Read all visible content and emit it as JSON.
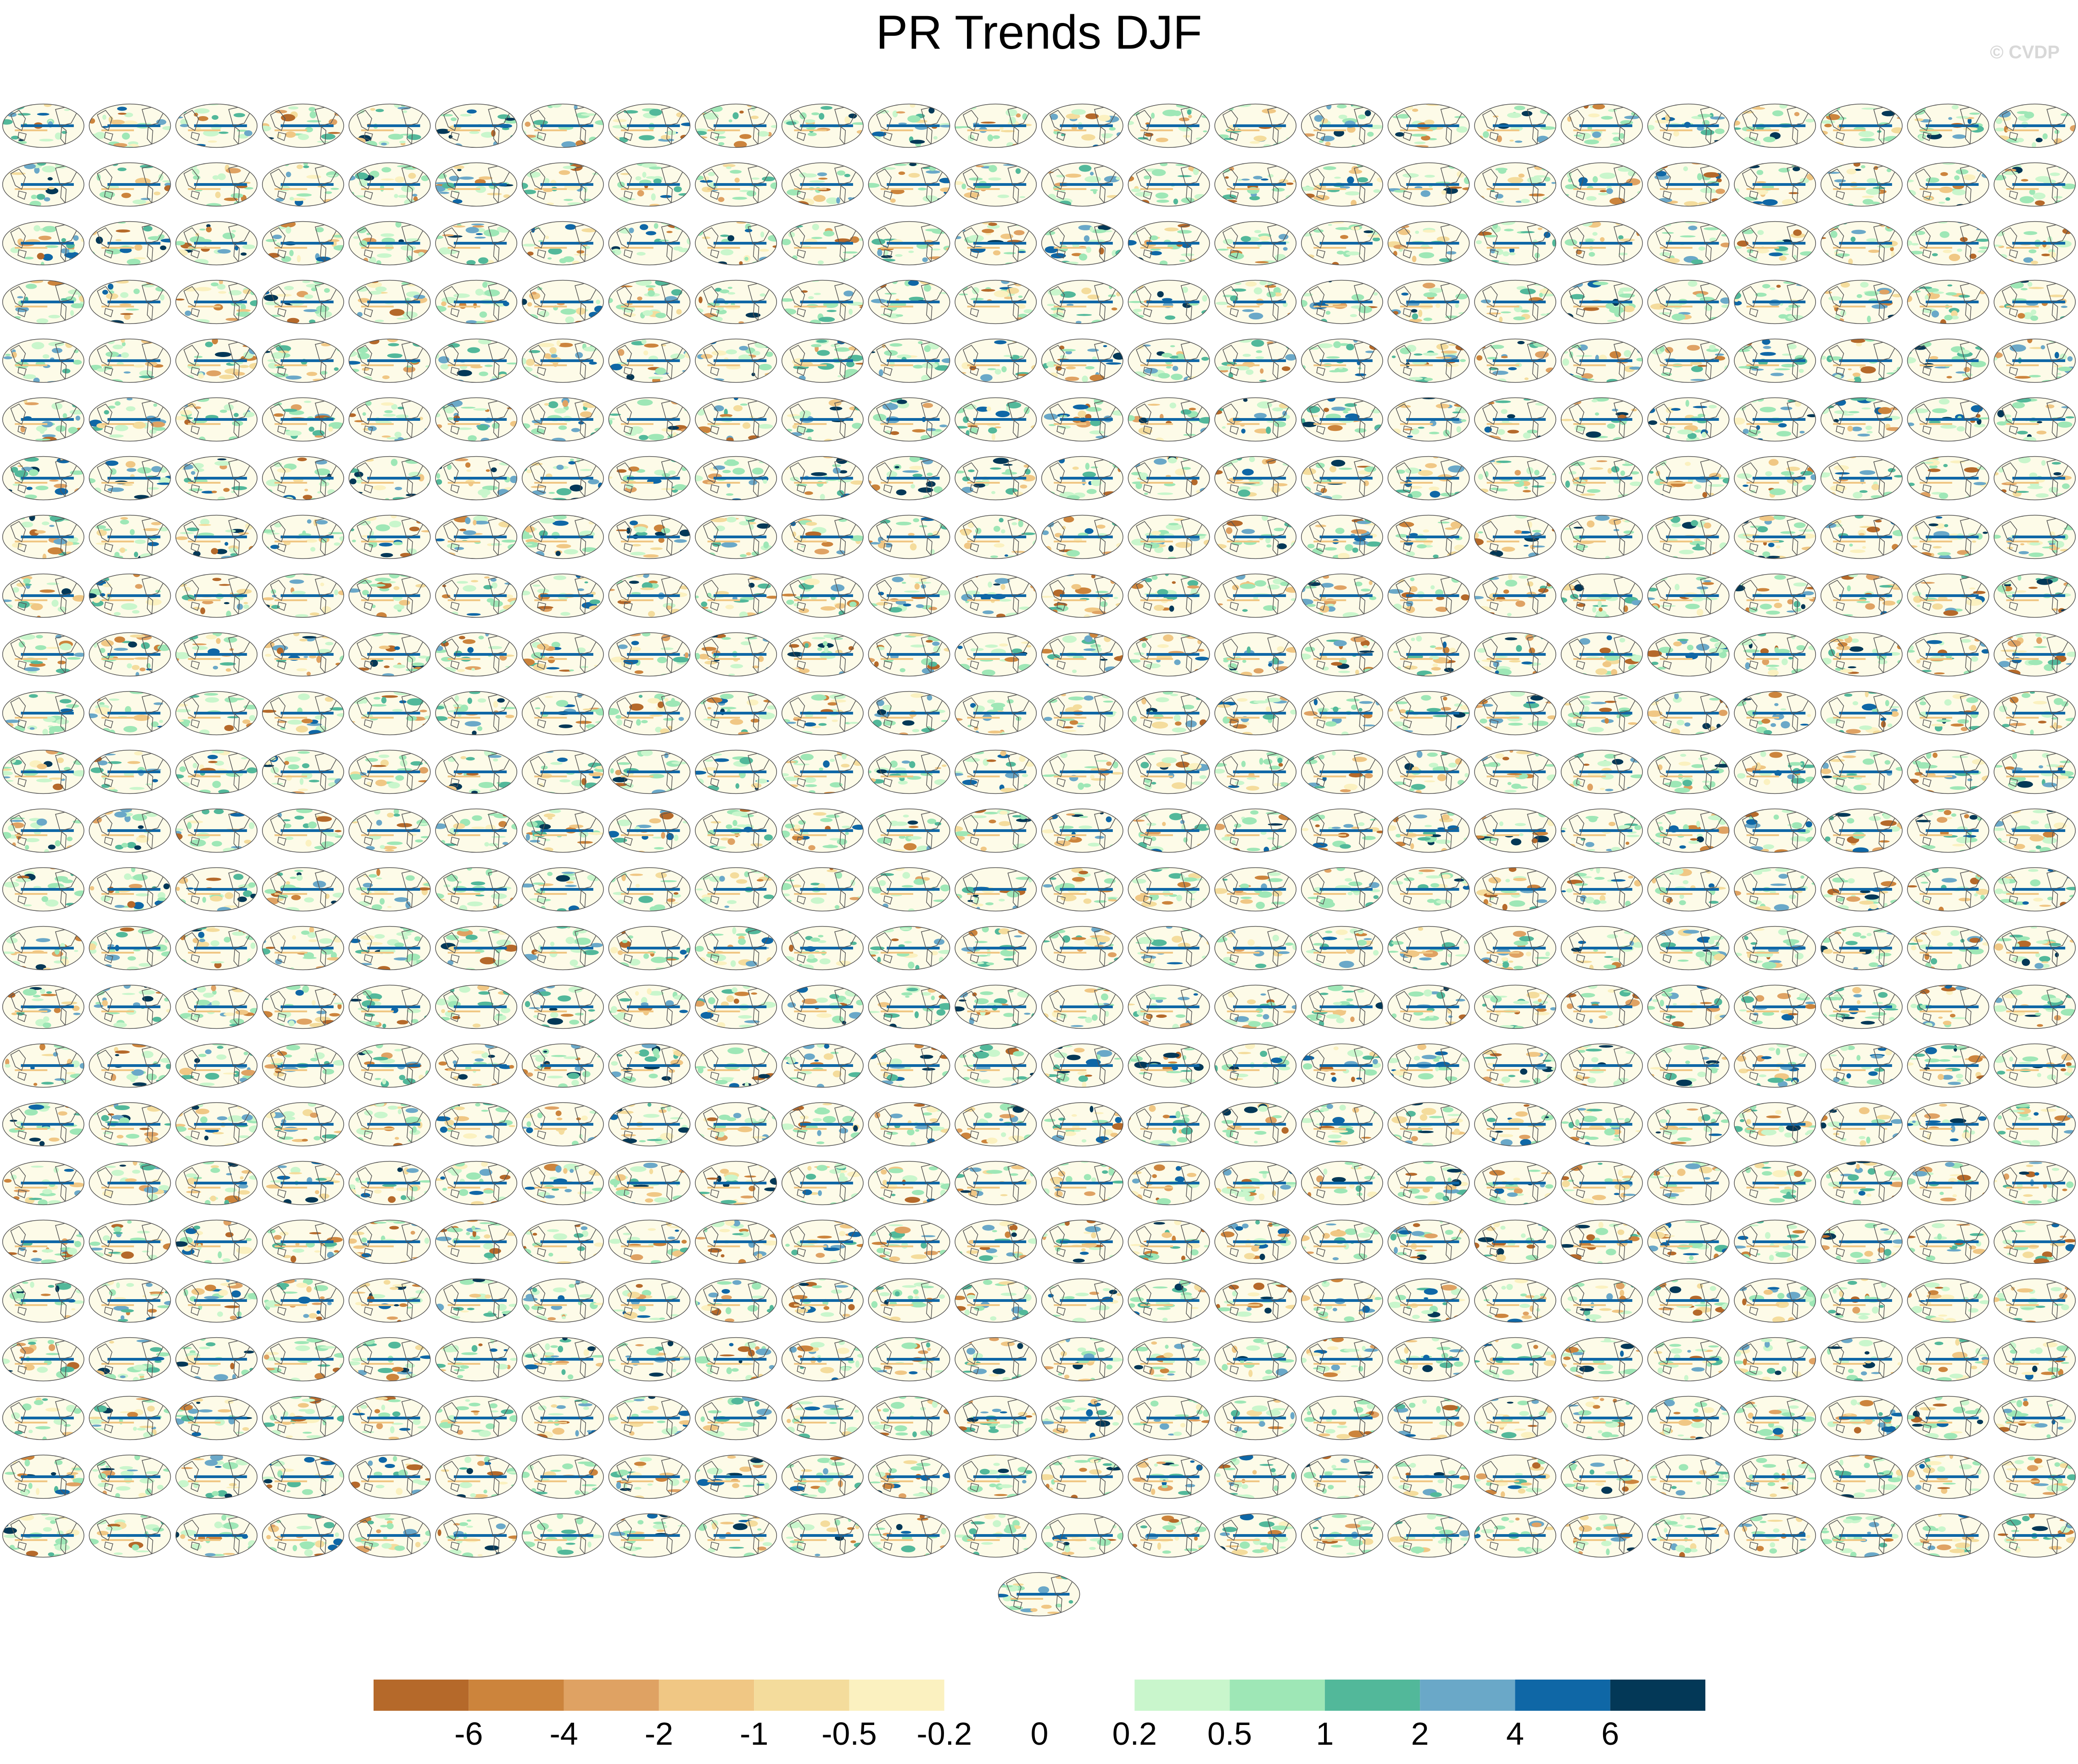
{
  "title": "PR Trends DJF",
  "watermark": "© CVDP",
  "colors": {
    "land_outline": "#555555",
    "background": "#ffffff"
  },
  "chart_data": {
    "type": "heatmap",
    "title": "PR Trends DJF",
    "panel_layout": {
      "rows": 25,
      "columns": 24,
      "extra_centered_panels": 1
    },
    "projection": "global map (elliptical, Pacific-centered)",
    "colorbar": {
      "orientation": "horizontal",
      "placement": "bottom-center",
      "tick_labels": [
        "-6",
        "-4",
        "-2",
        "-1",
        "-0.5",
        "-0.2",
        "0",
        "0.2",
        "0.5",
        "1",
        "2",
        "4",
        "6"
      ],
      "bin_colors": [
        "#b5692a",
        "#cc843c",
        "#dfa263",
        "#f0c784",
        "#f4dc9c",
        "#fbf1c0",
        "#ffffff",
        "#ffffff",
        "#c9f6cc",
        "#9ee7b6",
        "#52b89a",
        "#6aa8c8",
        "#0f67a6",
        "#033857"
      ]
    }
  }
}
